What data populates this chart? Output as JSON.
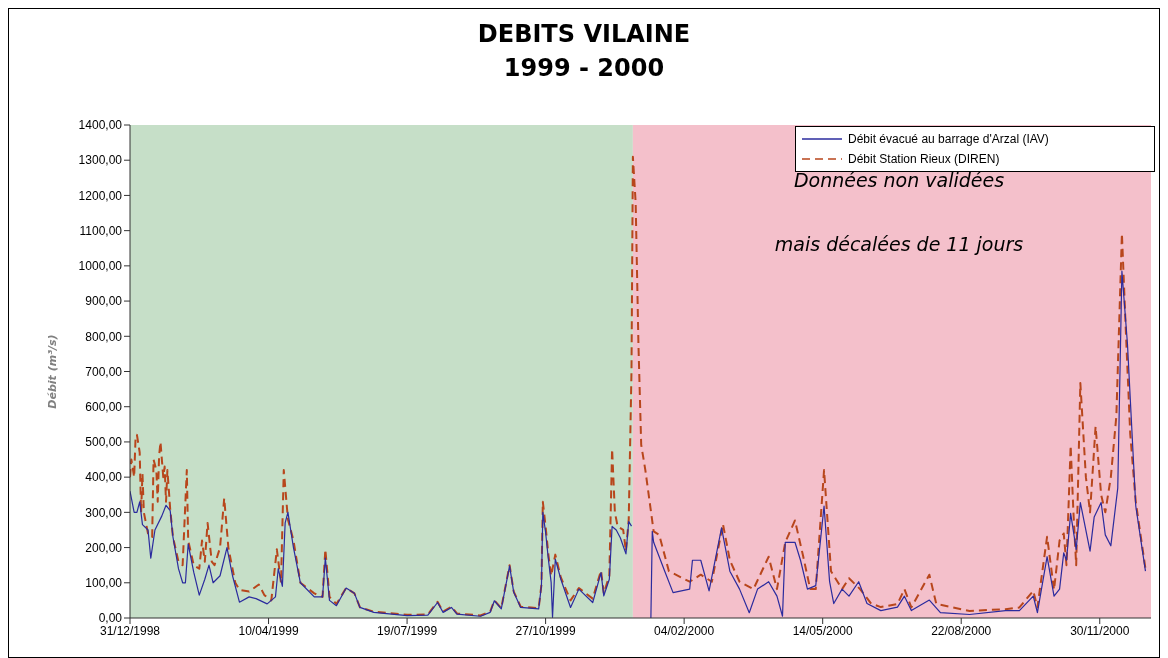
{
  "chart_data": {
    "type": "line",
    "title": "DEBITS VILAINE",
    "subtitle": "1999 - 2000",
    "ylabel": "Débit (m³/s)",
    "annotations": [
      "Données non validées",
      "mais décalées de 11 jours"
    ],
    "xlim": [
      "1998-12-31",
      "2001-01-06"
    ],
    "xticks": [
      {
        "value": "1998-12-31",
        "label": "31/12/1998"
      },
      {
        "value": "1999-04-10",
        "label": "10/04/1999"
      },
      {
        "value": "1999-07-19",
        "label": "19/07/1999"
      },
      {
        "value": "1999-10-27",
        "label": "27/10/1999"
      },
      {
        "value": "2000-02-04",
        "label": "04/02/2000"
      },
      {
        "value": "2000-05-14",
        "label": "14/05/2000"
      },
      {
        "value": "2000-08-22",
        "label": "22/08/2000"
      },
      {
        "value": "2000-11-30",
        "label": "30/11/2000"
      }
    ],
    "ylim": [
      0,
      1400
    ],
    "yticks": [
      {
        "value": 0,
        "label": "0,00"
      },
      {
        "value": 100,
        "label": "100,00"
      },
      {
        "value": 200,
        "label": "200,00"
      },
      {
        "value": 300,
        "label": "300,00"
      },
      {
        "value": 400,
        "label": "400,00"
      },
      {
        "value": 500,
        "label": "500,00"
      },
      {
        "value": 600,
        "label": "600,00"
      },
      {
        "value": 700,
        "label": "700,00"
      },
      {
        "value": 800,
        "label": "800,00"
      },
      {
        "value": 900,
        "label": "900,00"
      },
      {
        "value": 1000,
        "label": "1000,00"
      },
      {
        "value": 1100,
        "label": "1100,00"
      },
      {
        "value": 1200,
        "label": "1200,00"
      },
      {
        "value": 1300,
        "label": "1300,00"
      },
      {
        "value": 1400,
        "label": "1400,00"
      }
    ],
    "bands": [
      {
        "axis": "x",
        "from": "1998-12-31",
        "to": "1999-12-29",
        "color": "#c6dfc8"
      },
      {
        "axis": "x",
        "from": "1999-12-29",
        "to": "2001-01-06",
        "color": "#f4c0cb"
      }
    ],
    "legend": "top right",
    "marker": "none",
    "series": [
      {
        "name": "Débit évacué au barrage d'Arzal (IAV)",
        "color": "#2b2b9e",
        "line_style": "solid",
        "x": [
          "1998-12-31",
          "1999-01-03",
          "1999-01-05",
          "1999-01-07",
          "1999-01-09",
          "1999-01-13",
          "1999-01-15",
          "1999-01-18",
          "1999-01-23",
          "1999-01-26",
          "1999-01-29",
          "1999-01-31",
          "1999-02-04",
          "1999-02-07",
          "1999-02-09",
          "1999-02-11",
          "1999-02-15",
          "1999-02-19",
          "1999-02-23",
          "1999-02-26",
          "1999-03-01",
          "1999-03-06",
          "1999-03-11",
          "1999-03-15",
          "1999-03-20",
          "1999-03-27",
          "1999-04-01",
          "1999-04-09",
          "1999-04-15",
          "1999-04-17",
          "1999-04-20",
          "1999-04-22",
          "1999-04-24",
          "1999-04-28",
          "1999-05-03",
          "1999-05-13",
          "1999-05-19",
          "1999-05-21",
          "1999-05-24",
          "1999-05-29",
          "1999-06-05",
          "1999-06-11",
          "1999-06-15",
          "1999-06-25",
          "1999-07-19",
          "1999-08-03",
          "1999-08-10",
          "1999-08-14",
          "1999-08-20",
          "1999-08-24",
          "1999-09-10",
          "1999-09-17",
          "1999-09-20",
          "1999-09-25",
          "1999-10-01",
          "1999-10-04",
          "1999-10-09",
          "1999-10-22",
          "1999-10-24",
          "1999-10-25",
          "1999-10-27",
          "1999-10-29",
          "1999-10-31",
          "1999-11-01",
          "1999-11-03",
          "1999-11-07",
          "1999-11-14",
          "1999-11-20",
          "1999-11-30",
          "1999-12-06",
          "1999-12-08",
          "1999-12-12",
          "1999-12-14",
          "1999-12-17",
          "1999-12-20",
          "1999-12-24",
          "1999-12-26",
          "1999-12-28",
          "2000-01-03",
          "2000-01-11",
          "2000-01-12",
          "2000-01-13",
          "2000-01-17",
          "2000-01-21",
          "2000-01-27",
          "2000-02-08",
          "2000-02-10",
          "2000-02-16",
          "2000-02-22",
          "2000-03-02",
          "2000-03-08",
          "2000-03-15",
          "2000-03-22",
          "2000-03-28",
          "2000-04-05",
          "2000-04-11",
          "2000-04-15",
          "2000-04-17",
          "2000-04-24",
          "2000-04-28",
          "2000-05-03",
          "2000-05-09",
          "2000-05-15",
          "2000-05-19",
          "2000-05-22",
          "2000-05-28",
          "2000-06-02",
          "2000-06-09",
          "2000-06-15",
          "2000-06-25",
          "2000-07-07",
          "2000-07-12",
          "2000-07-17",
          "2000-07-30",
          "2000-08-07",
          "2000-08-28",
          "2000-09-23",
          "2000-10-03",
          "2000-10-13",
          "2000-10-16",
          "2000-10-23",
          "2000-10-28",
          "2000-11-01",
          "2000-11-04",
          "2000-11-06",
          "2000-11-09",
          "2000-11-13",
          "2000-11-16",
          "2000-11-23",
          "2000-11-26",
          "2000-12-01",
          "2000-12-04",
          "2000-12-08",
          "2000-12-13",
          "2000-12-16",
          "2000-12-20",
          "2000-12-26",
          "2001-01-02"
        ],
        "values": [
          360,
          300,
          300,
          330,
          265,
          250,
          170,
          250,
          290,
          320,
          305,
          230,
          140,
          100,
          100,
          210,
          130,
          65,
          110,
          150,
          100,
          120,
          200,
          120,
          45,
          60,
          55,
          40,
          60,
          140,
          90,
          270,
          300,
          200,
          100,
          60,
          60,
          170,
          50,
          35,
          85,
          70,
          30,
          16,
          7,
          8,
          44,
          16,
          30,
          11,
          5,
          16,
          49,
          26,
          148,
          73,
          30,
          26,
          92,
          300,
          243,
          167,
          101,
          2,
          167,
          110,
          30,
          82,
          44,
          129,
          63,
          110,
          260,
          250,
          227,
          182,
          274,
          261,
          null,
          0,
          246,
          215,
          174,
          133,
          72,
          82,
          164,
          164,
          77,
          256,
          133,
          82,
          15,
          82,
          103,
          62,
          5,
          215,
          215,
          164,
          82,
          92,
          318,
          103,
          41,
          82,
          62,
          103,
          41,
          21,
          31,
          62,
          21,
          51,
          15,
          10,
          21,
          21,
          62,
          15,
          174,
          62,
          82,
          185,
          164,
          297,
          195,
          328,
          190,
          287,
          328,
          236,
          205,
          369,
          985,
          779,
          318,
          133
        ]
      },
      {
        "name": "Débit Station Rieux (DIREN)",
        "color": "#b8461c",
        "line_style": "dashed",
        "x": [
          "1998-12-31",
          "1999-01-01",
          "1999-01-03",
          "1999-01-04",
          "1999-01-05",
          "1999-01-07",
          "1999-01-08",
          "1999-01-09",
          "1999-01-10",
          "1999-01-13",
          "1999-01-16",
          "1999-01-17",
          "1999-01-19",
          "1999-01-20",
          "1999-01-21",
          "1999-01-22",
          "1999-01-24",
          "1999-01-25",
          "1999-01-26",
          "1999-01-27",
          "1999-01-29",
          "1999-01-31",
          "1999-02-04",
          "1999-02-07",
          "1999-02-10",
          "1999-02-11",
          "1999-02-15",
          "1999-02-19",
          "1999-02-21",
          "1999-02-23",
          "1999-02-25",
          "1999-02-28",
          "1999-03-02",
          "1999-03-06",
          "1999-03-09",
          "1999-03-12",
          "1999-03-17",
          "1999-03-20",
          "1999-03-27",
          "1999-04-03",
          "1999-04-07",
          "1999-04-12",
          "1999-04-16",
          "1999-04-19",
          "1999-04-21",
          "1999-04-24",
          "1999-04-28",
          "1999-05-03",
          "1999-05-13",
          "1999-05-19",
          "1999-05-21",
          "1999-05-24",
          "1999-05-29",
          "1999-06-05",
          "1999-06-11",
          "1999-06-15",
          "1999-06-25",
          "1999-07-19",
          "1999-08-03",
          "1999-08-10",
          "1999-08-14",
          "1999-08-20",
          "1999-08-24",
          "1999-09-10",
          "1999-09-17",
          "1999-09-20",
          "1999-09-25",
          "1999-10-01",
          "1999-10-04",
          "1999-10-09",
          "1999-10-22",
          "1999-10-24",
          "1999-10-25",
          "1999-10-27",
          "1999-10-29",
          "1999-10-31",
          "1999-11-03",
          "1999-11-07",
          "1999-11-14",
          "1999-11-20",
          "1999-11-30",
          "1999-12-06",
          "1999-12-08",
          "1999-12-12",
          "1999-12-14",
          "1999-12-16",
          "1999-12-18",
          "1999-12-22",
          "1999-12-24",
          "1999-12-26",
          "1999-12-28",
          "1999-12-29",
          "1999-12-31",
          "2000-01-02",
          "2000-01-04",
          "2000-01-07",
          "2000-01-13",
          "2000-01-17",
          "2000-01-24",
          "2000-02-08",
          "2000-02-16",
          "2000-02-24",
          "2000-03-03",
          "2000-03-08",
          "2000-03-15",
          "2000-03-25",
          "2000-04-05",
          "2000-04-11",
          "2000-04-17",
          "2000-04-24",
          "2000-04-30",
          "2000-05-05",
          "2000-05-09",
          "2000-05-15",
          "2000-05-20",
          "2000-05-28",
          "2000-06-02",
          "2000-06-10",
          "2000-06-18",
          "2000-06-25",
          "2000-07-07",
          "2000-07-12",
          "2000-07-17",
          "2000-07-30",
          "2000-08-04",
          "2000-08-28",
          "2000-09-23",
          "2000-10-03",
          "2000-10-13",
          "2000-10-16",
          "2000-10-23",
          "2000-10-28",
          "2000-11-01",
          "2000-11-04",
          "2000-11-06",
          "2000-11-09",
          "2000-11-11",
          "2000-11-13",
          "2000-11-16",
          "2000-11-20",
          "2000-11-23",
          "2000-11-27",
          "2000-12-01",
          "2000-12-04",
          "2000-12-08",
          "2000-12-12",
          "2000-12-16",
          "2000-12-19",
          "2000-12-22",
          "2000-12-26",
          "2001-01-02"
        ],
        "values": [
          400,
          450,
          400,
          510,
          520,
          470,
          300,
          410,
          300,
          240,
          230,
          450,
          420,
          330,
          460,
          500,
          400,
          430,
          330,
          420,
          310,
          230,
          160,
          150,
          420,
          220,
          150,
          140,
          220,
          160,
          270,
          160,
          150,
          200,
          340,
          200,
          100,
          80,
          75,
          95,
          65,
          50,
          195,
          100,
          420,
          280,
          220,
          100,
          70,
          60,
          195,
          60,
          40,
          85,
          70,
          30,
          18,
          9,
          10,
          46,
          18,
          32,
          13,
          7,
          18,
          50,
          28,
          150,
          75,
          32,
          28,
          95,
          330,
          260,
          180,
          120,
          180,
          115,
          50,
          85,
          55,
          135,
          70,
          120,
          480,
          300,
          260,
          250,
          190,
          280,
          700,
          1310,
          1180,
          779,
          492,
          420,
          246,
          236,
          133,
          103,
          123,
          103,
          267,
          164,
          103,
          82,
          174,
          82,
          215,
          277,
          174,
          82,
          82,
          420,
          133,
          82,
          113,
          82,
          41,
          31,
          40,
          82,
          30,
          123,
          40,
          20,
          25,
          30,
          77,
          30,
          231,
          80,
          220,
          240,
          150,
          490,
          300,
          150,
          667,
          400,
          300,
          544,
          350,
          300,
          400,
          574,
          1092,
          800,
          523,
          330,
          140
        ]
      }
    ]
  }
}
